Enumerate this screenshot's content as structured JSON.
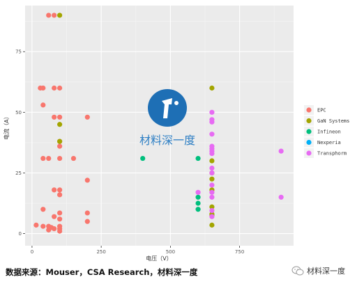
{
  "chart_data": {
    "type": "scatter",
    "xlabel": "电压（V）",
    "ylabel": "电流（A）",
    "xlim": [
      -25,
      945
    ],
    "ylim": [
      -5,
      94
    ],
    "xticks": [
      0,
      250,
      500,
      750
    ],
    "yticks": [
      0,
      25,
      50,
      75
    ],
    "legend_position": "right",
    "grid": true,
    "series": [
      {
        "name": "EPC",
        "color": "#F8766D",
        "points": [
          [
            60,
            90
          ],
          [
            80,
            90
          ],
          [
            30,
            60
          ],
          [
            40,
            60
          ],
          [
            80,
            60
          ],
          [
            100,
            60
          ],
          [
            40,
            53
          ],
          [
            80,
            48
          ],
          [
            100,
            48
          ],
          [
            200,
            48
          ],
          [
            100,
            38
          ],
          [
            100,
            36
          ],
          [
            40,
            31
          ],
          [
            60,
            31
          ],
          [
            100,
            31
          ],
          [
            150,
            31
          ],
          [
            200,
            22
          ],
          [
            80,
            18
          ],
          [
            100,
            18
          ],
          [
            100,
            16
          ],
          [
            40,
            10
          ],
          [
            100,
            8.5
          ],
          [
            200,
            8.5
          ],
          [
            80,
            7
          ],
          [
            100,
            6
          ],
          [
            15,
            3.5
          ],
          [
            40,
            3
          ],
          [
            60,
            3
          ],
          [
            80,
            2
          ],
          [
            100,
            3
          ],
          [
            100,
            2
          ],
          [
            100,
            1
          ],
          [
            60,
            1.5
          ],
          [
            70,
            2.5
          ],
          [
            200,
            5
          ]
        ]
      },
      {
        "name": "GaN Systems",
        "color": "#A3A500",
        "points": [
          [
            100,
            90
          ],
          [
            650,
            60
          ],
          [
            100,
            45
          ],
          [
            100,
            38
          ],
          [
            650,
            30
          ],
          [
            650,
            25
          ],
          [
            650,
            22.5
          ],
          [
            650,
            18
          ],
          [
            650,
            11
          ],
          [
            650,
            8
          ],
          [
            650,
            7.5
          ],
          [
            650,
            3.5
          ]
        ]
      },
      {
        "name": "Infineon",
        "color": "#00BF7D",
        "points": [
          [
            400,
            31
          ],
          [
            600,
            31
          ],
          [
            600,
            15
          ],
          [
            600,
            12.5
          ],
          [
            600,
            10
          ]
        ]
      },
      {
        "name": "Nexperia",
        "color": "#00B0F6",
        "points": []
      },
      {
        "name": "Transphorm",
        "color": "#E76BF3",
        "points": [
          [
            650,
            50
          ],
          [
            650,
            47
          ],
          [
            650,
            46
          ],
          [
            650,
            41
          ],
          [
            650,
            36
          ],
          [
            650,
            35
          ],
          [
            650,
            34
          ],
          [
            650,
            33
          ],
          [
            650,
            27
          ],
          [
            650,
            25
          ],
          [
            650,
            20
          ],
          [
            650,
            17
          ],
          [
            650,
            15
          ],
          [
            650,
            9.5
          ],
          [
            650,
            7
          ],
          [
            600,
            17
          ],
          [
            900,
            34
          ],
          [
            900,
            15
          ]
        ]
      }
    ]
  },
  "watermark": {
    "text": "材料深一度"
  },
  "footer": {
    "source": "数据来源：Mouser，CSA Research，材料深一度",
    "account": "材料深一度"
  },
  "colors": {
    "panel": "#EBEBEB",
    "grid": "#FFFFFF",
    "watermark": "#1E6FB5"
  }
}
